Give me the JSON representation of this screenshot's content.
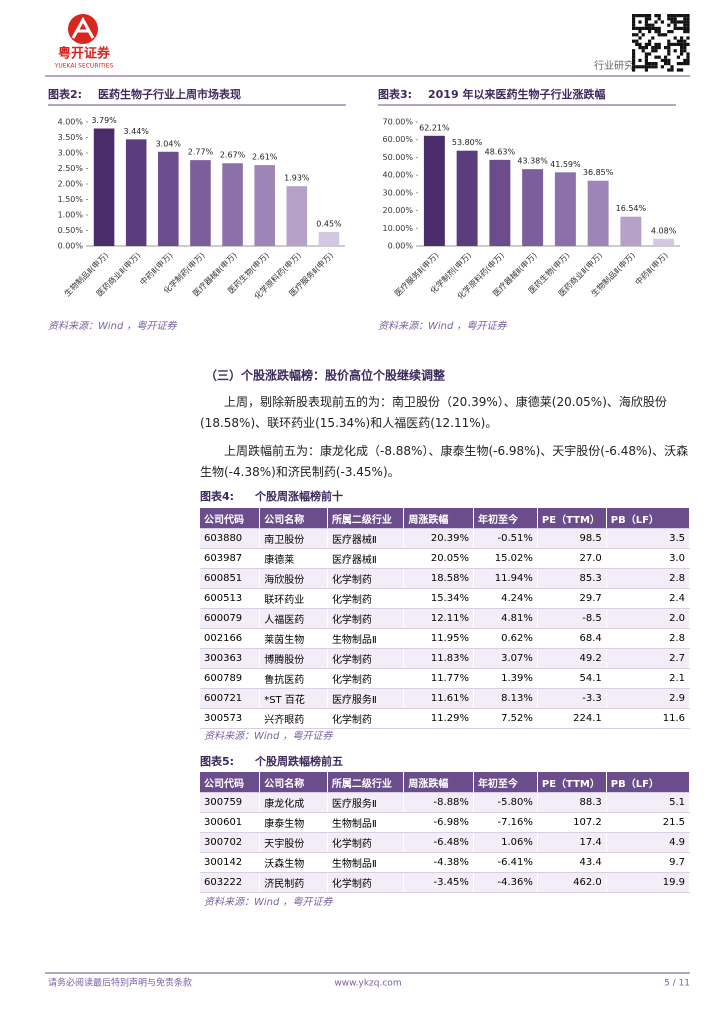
{
  "header": {
    "company": "粤开证券",
    "company_en": "YUEKAI SECURITIES",
    "category": "行业研究"
  },
  "chart_data": [
    {
      "type": "bar",
      "label": "图表2:",
      "title": "医药生物子行业上周市场表现",
      "categories": [
        "生物制品Ⅱ(申万)",
        "医药商业Ⅱ(申万)",
        "中药Ⅱ(申万)",
        "化学制药(申万)",
        "医疗器械Ⅱ(申万)",
        "医药生物(申万)",
        "化学原料药(申万)",
        "医疗服务Ⅱ(申万)"
      ],
      "values": [
        3.79,
        3.44,
        3.04,
        2.77,
        2.67,
        2.61,
        1.93,
        0.45
      ],
      "value_labels": [
        "3.79%",
        "3.44%",
        "3.04%",
        "2.77%",
        "2.67%",
        "2.61%",
        "1.93%",
        "0.45%"
      ],
      "colors": [
        "#4a2c6a",
        "#5b3d7d",
        "#6b4d8d",
        "#7b5e9b",
        "#8b70a9",
        "#9d85b7",
        "#b6a2c9",
        "#d4c7e1"
      ],
      "ylim": [
        0,
        4
      ],
      "yticks": [
        {
          "value": 0,
          "label": "0.00%"
        },
        {
          "value": 0.5,
          "label": "0.50%"
        },
        {
          "value": 1,
          "label": "1.00%"
        },
        {
          "value": 1.5,
          "label": "1.50%"
        },
        {
          "value": 2,
          "label": "2.00%"
        },
        {
          "value": 2.5,
          "label": "2.50%"
        },
        {
          "value": 3,
          "label": "3.00%"
        },
        {
          "value": 3.5,
          "label": "3.50%"
        },
        {
          "value": 4,
          "label": "4.00%"
        }
      ],
      "source": "资料来源：Wind ，粤开证券"
    },
    {
      "type": "bar",
      "label": "图表3:",
      "title": "2019 年以来医药生物子行业涨跌幅",
      "categories": [
        "医疗服务Ⅱ(申万)",
        "化学制剂(申万)",
        "化学原料药(申万)",
        "医疗器械Ⅱ(申万)",
        "医药生物(申万)",
        "医药商业Ⅱ(申万)",
        "生物制品Ⅱ(申万)",
        "中药Ⅱ(申万)"
      ],
      "values": [
        62.21,
        53.8,
        48.63,
        43.38,
        41.59,
        36.85,
        16.54,
        4.08
      ],
      "value_labels": [
        "62.21%",
        "53.80%",
        "48.63%",
        "43.38%",
        "41.59%",
        "36.85%",
        "16.54%",
        "4.08%"
      ],
      "colors": [
        "#4a2c6a",
        "#5b3d7d",
        "#6b4d8d",
        "#7b5e9b",
        "#8b70a9",
        "#9d85b7",
        "#b6a2c9",
        "#d4c7e1"
      ],
      "ylim": [
        0,
        70
      ],
      "yticks": [
        {
          "value": 0,
          "label": "0.00%"
        },
        {
          "value": 10,
          "label": "10.00%"
        },
        {
          "value": 20,
          "label": "20.00%"
        },
        {
          "value": 30,
          "label": "30.00%"
        },
        {
          "value": 40,
          "label": "40.00%"
        },
        {
          "value": 50,
          "label": "50.00%"
        },
        {
          "value": 60,
          "label": "60.00%"
        },
        {
          "value": 70,
          "label": "70.00%"
        }
      ],
      "source": "资料来源：Wind ，粤开证券"
    }
  ],
  "section": {
    "heading": "（三）个股涨跌幅榜：股价高位个股继续调整",
    "paragraphs": [
      "上周，剔除新股表现前五的为：南卫股份（20.39%）、康德莱(20.05%)、海欣股份(18.58%)、联环药业(15.34%)和人福医药(12.11%)。",
      "上周跌幅前五为：康龙化成（-8.88%）、康泰生物(-6.98%)、天宇股份(-6.48%)、沃森生物(-4.38%)和济民制药(-3.45%)。"
    ]
  },
  "tables": [
    {
      "label": "图表4:",
      "title": "个股周涨幅榜前十",
      "header": [
        "公司代码",
        "公司名称",
        "所属二级行业",
        "周涨跌幅",
        "年初至今",
        "PE（TTM）",
        "PB（LF）"
      ],
      "rows": [
        [
          "603880",
          "南卫股份",
          "医疗器械Ⅱ",
          "20.39%",
          "-0.51%",
          "98.5",
          "3.5"
        ],
        [
          "603987",
          "康德莱",
          "医疗器械Ⅱ",
          "20.05%",
          "15.02%",
          "27.0",
          "3.0"
        ],
        [
          "600851",
          "海欣股份",
          "化学制药",
          "18.58%",
          "11.94%",
          "85.3",
          "2.8"
        ],
        [
          "600513",
          "联环药业",
          "化学制药",
          "15.34%",
          "4.24%",
          "29.7",
          "2.4"
        ],
        [
          "600079",
          "人福医药",
          "化学制药",
          "12.11%",
          "4.81%",
          "-8.5",
          "2.0"
        ],
        [
          "002166",
          "莱茵生物",
          "生物制品Ⅱ",
          "11.95%",
          "0.62%",
          "68.4",
          "2.8"
        ],
        [
          "300363",
          "博腾股份",
          "化学制药",
          "11.83%",
          "3.07%",
          "49.2",
          "2.7"
        ],
        [
          "600789",
          "鲁抗医药",
          "化学制药",
          "11.77%",
          "1.39%",
          "54.1",
          "2.1"
        ],
        [
          "600721",
          "*ST 百花",
          "医疗服务Ⅱ",
          "11.61%",
          "8.13%",
          "-3.3",
          "2.9"
        ],
        [
          "300573",
          "兴齐眼药",
          "化学制药",
          "11.29%",
          "7.52%",
          "224.1",
          "11.6"
        ]
      ],
      "source": "资料来源：Wind ，粤开证券"
    },
    {
      "label": "图表5:",
      "title": "个股周跌幅榜前五",
      "header": [
        "公司代码",
        "公司名称",
        "所属二级行业",
        "周涨跌幅",
        "年初至今",
        "PE（TTM）",
        "PB（LF）"
      ],
      "rows": [
        [
          "300759",
          "康龙化成",
          "医疗服务Ⅱ",
          "-8.88%",
          "-5.80%",
          "88.3",
          "5.1"
        ],
        [
          "300601",
          "康泰生物",
          "生物制品Ⅱ",
          "-6.98%",
          "-7.16%",
          "107.2",
          "21.5"
        ],
        [
          "300702",
          "天宇股份",
          "化学制药",
          "-6.48%",
          "1.06%",
          "17.4",
          "4.9"
        ],
        [
          "300142",
          "沃森生物",
          "生物制品Ⅱ",
          "-4.38%",
          "-6.41%",
          "43.4",
          "9.7"
        ],
        [
          "603222",
          "济民制药",
          "化学制药",
          "-3.45%",
          "-4.36%",
          "462.0",
          "19.9"
        ]
      ],
      "source": "资料来源：Wind ，粤开证券"
    }
  ],
  "footer": {
    "disclaimer": "请务必阅读最后特别声明与免责条款",
    "site": "www.ykzq.com",
    "page": "5 / 11"
  }
}
